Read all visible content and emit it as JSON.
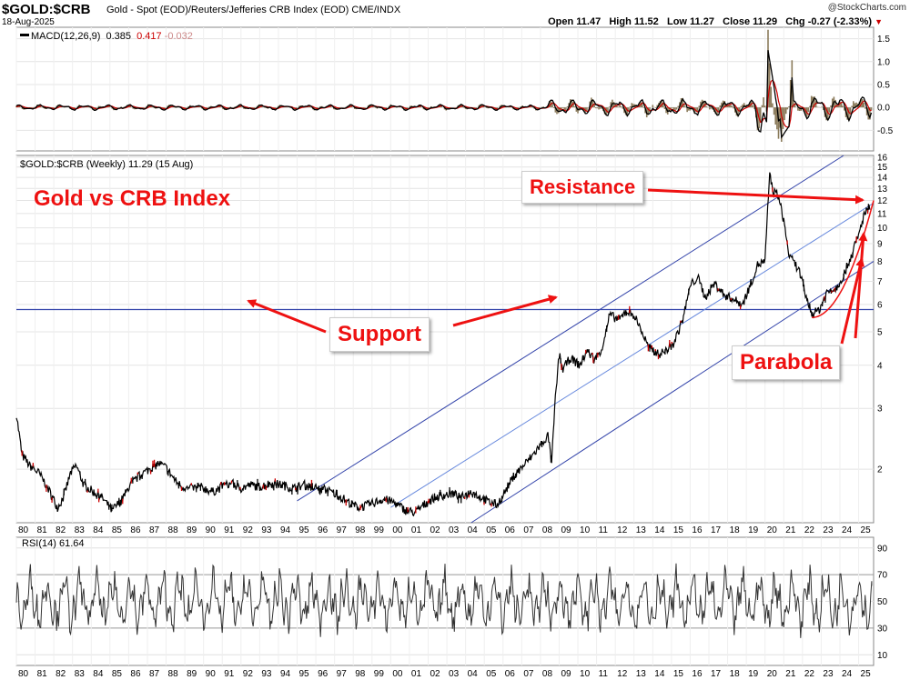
{
  "header": {
    "symbol": "$GOLD:$CRB",
    "description": "Gold - Spot (EOD)/Reuters/Jefferies CRB Index (EOD)  CME/INDX",
    "date": "18-Aug-2025",
    "brand": "@StockCharts.com",
    "quote": {
      "open_label": "Open",
      "open": "11.47",
      "high_label": "High",
      "high": "11.52",
      "low_label": "Low",
      "low": "11.27",
      "close_label": "Close",
      "close": "11.29",
      "chg_label": "Chg",
      "chg": "-0.27 (-2.33%)"
    }
  },
  "chart_data": [
    {
      "panel": "macd",
      "type": "line",
      "legend": {
        "name": "MACD(12,26,9)",
        "macd": "0.385",
        "signal": "0.417",
        "hist": "-0.032"
      },
      "yticks": [
        -0.5,
        0.0,
        0.5,
        1.0,
        1.5
      ],
      "ytick_labels": [
        "-0.5",
        "0.0",
        "0.5",
        "1.0",
        "1.5"
      ],
      "ylim": [
        -0.95,
        1.75
      ],
      "colors": {
        "macd": "#000000",
        "signal": "#cc0000",
        "hist": "#8b7b5b"
      }
    },
    {
      "panel": "price",
      "type": "line",
      "scale": "log",
      "legend": "$GOLD:$CRB (Weekly) 11.29 (15 Aug)",
      "title": "Gold vs CRB Index",
      "yticks": [
        2,
        3,
        4,
        5,
        6,
        7,
        8,
        9,
        10,
        11,
        12,
        13,
        14,
        15,
        16
      ],
      "ylim": [
        1.4,
        16.2
      ],
      "xlim": [
        1980.0,
        2025.8
      ],
      "x_tick_labels": [
        "80",
        "81",
        "82",
        "83",
        "84",
        "85",
        "86",
        "87",
        "88",
        "89",
        "90",
        "91",
        "92",
        "93",
        "94",
        "95",
        "96",
        "97",
        "98",
        "99",
        "00",
        "01",
        "02",
        "03",
        "04",
        "05",
        "06",
        "07",
        "08",
        "09",
        "10",
        "11",
        "12",
        "13",
        "14",
        "15",
        "16",
        "17",
        "18",
        "19",
        "20",
        "21",
        "22",
        "23",
        "24",
        "25"
      ],
      "price_points": [
        [
          1980.0,
          2.9
        ],
        [
          1980.3,
          2.2
        ],
        [
          1980.7,
          2.05
        ],
        [
          1981.2,
          1.95
        ],
        [
          1981.6,
          1.8
        ],
        [
          1982.2,
          1.55
        ],
        [
          1982.5,
          1.65
        ],
        [
          1982.9,
          1.95
        ],
        [
          1983.2,
          2.05
        ],
        [
          1983.6,
          1.8
        ],
        [
          1984.1,
          1.72
        ],
        [
          1984.6,
          1.65
        ],
        [
          1985.1,
          1.52
        ],
        [
          1985.6,
          1.62
        ],
        [
          1986.1,
          1.8
        ],
        [
          1986.6,
          1.92
        ],
        [
          1987.1,
          2.0
        ],
        [
          1987.6,
          2.08
        ],
        [
          1988.0,
          2.02
        ],
        [
          1988.6,
          1.82
        ],
        [
          1989.2,
          1.75
        ],
        [
          1989.8,
          1.78
        ],
        [
          1990.5,
          1.72
        ],
        [
          1991.0,
          1.78
        ],
        [
          1991.5,
          1.82
        ],
        [
          1992.0,
          1.76
        ],
        [
          1992.5,
          1.8
        ],
        [
          1993.0,
          1.78
        ],
        [
          1993.6,
          1.82
        ],
        [
          1994.2,
          1.8
        ],
        [
          1994.8,
          1.76
        ],
        [
          1995.4,
          1.8
        ],
        [
          1996.0,
          1.76
        ],
        [
          1996.6,
          1.74
        ],
        [
          1997.2,
          1.68
        ],
        [
          1997.8,
          1.6
        ],
        [
          1998.3,
          1.55
        ],
        [
          1998.9,
          1.58
        ],
        [
          1999.6,
          1.64
        ],
        [
          2000.2,
          1.6
        ],
        [
          2000.8,
          1.52
        ],
        [
          2001.3,
          1.5
        ],
        [
          2001.8,
          1.58
        ],
        [
          2002.3,
          1.65
        ],
        [
          2002.8,
          1.68
        ],
        [
          2003.3,
          1.7
        ],
        [
          2003.8,
          1.66
        ],
        [
          2004.3,
          1.72
        ],
        [
          2004.8,
          1.66
        ],
        [
          2005.3,
          1.6
        ],
        [
          2005.7,
          1.58
        ],
        [
          2006.1,
          1.72
        ],
        [
          2006.6,
          1.92
        ],
        [
          2007.1,
          2.05
        ],
        [
          2007.6,
          2.2
        ],
        [
          2008.0,
          2.35
        ],
        [
          2008.4,
          2.5
        ],
        [
          2008.6,
          2.12
        ],
        [
          2008.8,
          3.2
        ],
        [
          2009.0,
          4.3
        ],
        [
          2009.2,
          3.9
        ],
        [
          2009.6,
          4.2
        ],
        [
          2010.1,
          4.0
        ],
        [
          2010.5,
          4.4
        ],
        [
          2010.9,
          4.15
        ],
        [
          2011.3,
          4.5
        ],
        [
          2011.7,
          5.6
        ],
        [
          2012.2,
          5.4
        ],
        [
          2012.6,
          5.75
        ],
        [
          2013.0,
          5.6
        ],
        [
          2013.4,
          5.0
        ],
        [
          2013.8,
          4.5
        ],
        [
          2014.3,
          4.3
        ],
        [
          2014.7,
          4.4
        ],
        [
          2015.1,
          4.6
        ],
        [
          2015.6,
          5.4
        ],
        [
          2016.0,
          6.8
        ],
        [
          2016.4,
          7.2
        ],
        [
          2016.8,
          6.3
        ],
        [
          2017.3,
          6.9
        ],
        [
          2017.8,
          6.4
        ],
        [
          2018.3,
          6.2
        ],
        [
          2018.8,
          6.0
        ],
        [
          2019.2,
          6.8
        ],
        [
          2019.6,
          7.8
        ],
        [
          2020.0,
          8.0
        ],
        [
          2020.25,
          14.5
        ],
        [
          2020.4,
          12.8
        ],
        [
          2020.7,
          12.4
        ],
        [
          2021.0,
          10.5
        ],
        [
          2021.3,
          8.2
        ],
        [
          2021.8,
          7.6
        ],
        [
          2022.2,
          6.3
        ],
        [
          2022.5,
          5.6
        ],
        [
          2022.9,
          5.8
        ],
        [
          2023.3,
          6.5
        ],
        [
          2023.8,
          6.7
        ],
        [
          2024.2,
          7.3
        ],
        [
          2024.6,
          8.3
        ],
        [
          2025.0,
          9.5
        ],
        [
          2025.3,
          11.0
        ],
        [
          2025.6,
          11.29
        ]
      ],
      "annotations": {
        "support": "Support",
        "resistance": "Resistance",
        "parabola": "Parabola"
      },
      "colors": {
        "price": "#000000",
        "down": "#cc0000",
        "channel": "#3344aa",
        "midline": "#6688dd",
        "support": "#3344aa",
        "annotation": "#ee1111"
      }
    },
    {
      "panel": "rsi",
      "type": "line",
      "legend": "RSI(14) 61.64",
      "yticks": [
        10,
        30,
        50,
        70,
        90
      ],
      "ylim": [
        2,
        98
      ],
      "x_tick_labels": [
        "80",
        "81",
        "82",
        "83",
        "84",
        "85",
        "86",
        "87",
        "88",
        "89",
        "90",
        "91",
        "92",
        "93",
        "94",
        "95",
        "96",
        "97",
        "98",
        "99",
        "00",
        "01",
        "02",
        "03",
        "04",
        "05",
        "06",
        "07",
        "08",
        "09",
        "10",
        "11",
        "12",
        "13",
        "14",
        "15",
        "16",
        "17",
        "18",
        "19",
        "20",
        "21",
        "22",
        "23",
        "24",
        "25"
      ]
    }
  ]
}
